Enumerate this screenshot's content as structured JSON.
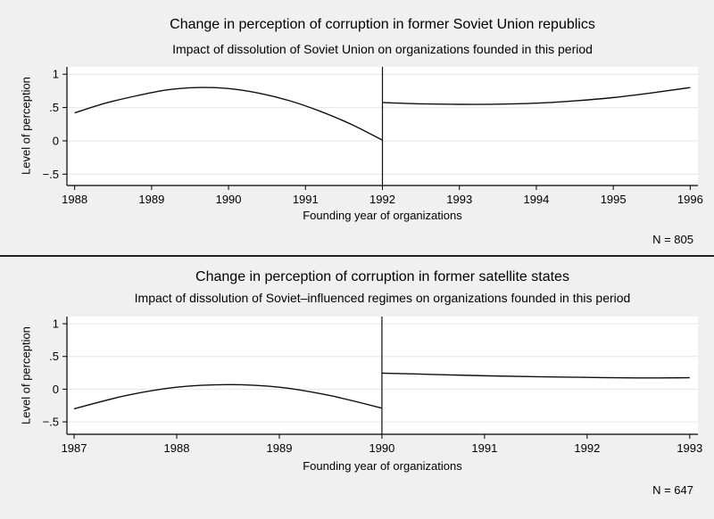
{
  "figure": {
    "background_color": "#f0f0f0",
    "separator_color": "#222222",
    "plot_background_color": "#ffffff",
    "gridline_color": "#e6e6e6",
    "axis_color": "#000000"
  },
  "chart_data": [
    {
      "type": "line",
      "title": "Change in perception of corruption in former Soviet Union republics",
      "subtitle": "Impact of dissolution of Soviet Union on organizations founded in this period",
      "xlabel": "Founding year of organizations",
      "ylabel": "Level of perception",
      "n_label": "N = 805",
      "line_color": "#0f0f0f",
      "cutoff_color": "#0f0f0f",
      "grid": true,
      "legend": "none",
      "xlim": [
        1987.9,
        1996.1
      ],
      "ylim": [
        -0.67,
        1.11
      ],
      "xtick_values": [
        1988,
        1989,
        1990,
        1991,
        1992,
        1993,
        1994,
        1995,
        1996
      ],
      "xtick_labels": [
        "1988",
        "1989",
        "1990",
        "1991",
        "1992",
        "1993",
        "1994",
        "1995",
        "1996"
      ],
      "ytick_values": [
        1,
        0.5,
        0,
        -0.5
      ],
      "ytick_labels": [
        "1",
        ".5",
        "0",
        "−.5"
      ],
      "cutoff_x": 1992,
      "series": [
        {
          "name": "fit-before-dissolution",
          "x": [
            1988,
            1988.4,
            1988.8,
            1989.2,
            1989.6,
            1990,
            1990.4,
            1990.8,
            1991.2,
            1991.6,
            1992
          ],
          "y": [
            0.42,
            0.565,
            0.675,
            0.765,
            0.8,
            0.785,
            0.715,
            0.6,
            0.44,
            0.245,
            0.01
          ]
        },
        {
          "name": "fit-after-dissolution",
          "x": [
            1992,
            1992.5,
            1993,
            1993.5,
            1994,
            1994.5,
            1995,
            1995.5,
            1996
          ],
          "y": [
            0.575,
            0.555,
            0.548,
            0.55,
            0.565,
            0.6,
            0.65,
            0.72,
            0.8
          ]
        }
      ]
    },
    {
      "type": "line",
      "title": "Change in perception of corruption in former satellite states",
      "subtitle": "Impact of dissolution of Soviet–influenced regimes on organizations founded in this period",
      "xlabel": "Founding year of organizations",
      "ylabel": "Level of perception",
      "n_label": "N = 647",
      "line_color": "#0f0f0f",
      "cutoff_color": "#0f0f0f",
      "grid": true,
      "legend": "none",
      "xlim": [
        1986.93,
        1993.08
      ],
      "ylim": [
        -0.69,
        1.11
      ],
      "xtick_values": [
        1987,
        1988,
        1989,
        1990,
        1991,
        1992,
        1993
      ],
      "xtick_labels": [
        "1987",
        "1988",
        "1989",
        "1990",
        "1991",
        "1992",
        "1993"
      ],
      "ytick_values": [
        1,
        0.5,
        0,
        -0.5
      ],
      "ytick_labels": [
        "1",
        ".5",
        "0",
        "−.5"
      ],
      "cutoff_x": 1990,
      "series": [
        {
          "name": "fit-before-dissolution",
          "x": [
            1987,
            1987.5,
            1988,
            1988.5,
            1989,
            1989.5,
            1990
          ],
          "y": [
            -0.3,
            -0.1,
            0.03,
            0.07,
            0.03,
            -0.1,
            -0.29
          ]
        },
        {
          "name": "fit-after-dissolution",
          "x": [
            1990,
            1990.5,
            1991,
            1991.5,
            1992,
            1992.5,
            1993
          ],
          "y": [
            0.245,
            0.225,
            0.205,
            0.19,
            0.18,
            0.172,
            0.175
          ]
        }
      ]
    }
  ]
}
